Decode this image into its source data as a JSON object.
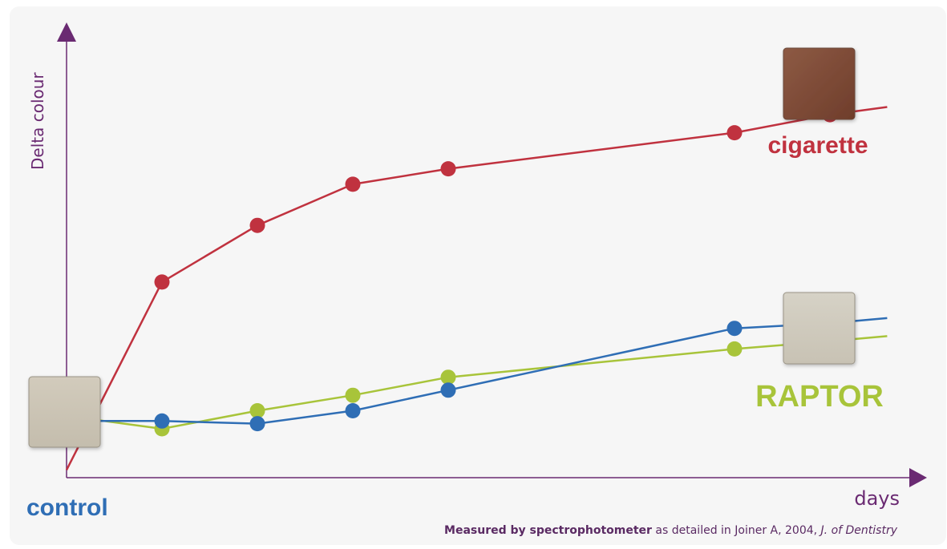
{
  "chart_data": {
    "type": "line",
    "title": "",
    "xlabel": "days",
    "ylabel": "Delta colour",
    "x": [
      1,
      2,
      3,
      4,
      7,
      8,
      8.6
    ],
    "series": [
      {
        "name": "cigarette",
        "color": "#c0323f",
        "start": 1.5,
        "values": [
          38,
          49,
          57,
          60,
          67,
          70.5,
          72
        ],
        "last_marked": false
      },
      {
        "name": "control",
        "color": "#2f6eb5",
        "start": 11,
        "values": [
          11,
          10.5,
          13,
          17,
          29,
          30,
          31
        ],
        "last_marked": false
      },
      {
        "name": "RAPTOR",
        "color": "#a8c43a",
        "start": 12,
        "values": [
          9.5,
          13,
          16,
          19.5,
          25,
          26.5,
          27.5
        ],
        "last_marked": false
      }
    ],
    "xlim": [
      0,
      9
    ],
    "ylim": [
      0,
      85
    ],
    "grid": false,
    "legend": "inline-labels",
    "axis_color": "#6a2a72"
  },
  "swatches": [
    {
      "name": "control-swatch",
      "color_top": "#d2cbbc",
      "color_bottom": "#c4bdad"
    },
    {
      "name": "cigarette-swatch",
      "color_top": "#8d5a44",
      "color_bottom": "#6f3d2b"
    },
    {
      "name": "raptor-swatch",
      "color_top": "#d6d2c6",
      "color_bottom": "#c8c2b4"
    }
  ],
  "footnote": {
    "bold": "Measured by spectrophotometer",
    "normal": " as detailed in Joiner A, 2004,  ",
    "italic": "J. of Dentistry",
    "color": "#5a2a63"
  }
}
